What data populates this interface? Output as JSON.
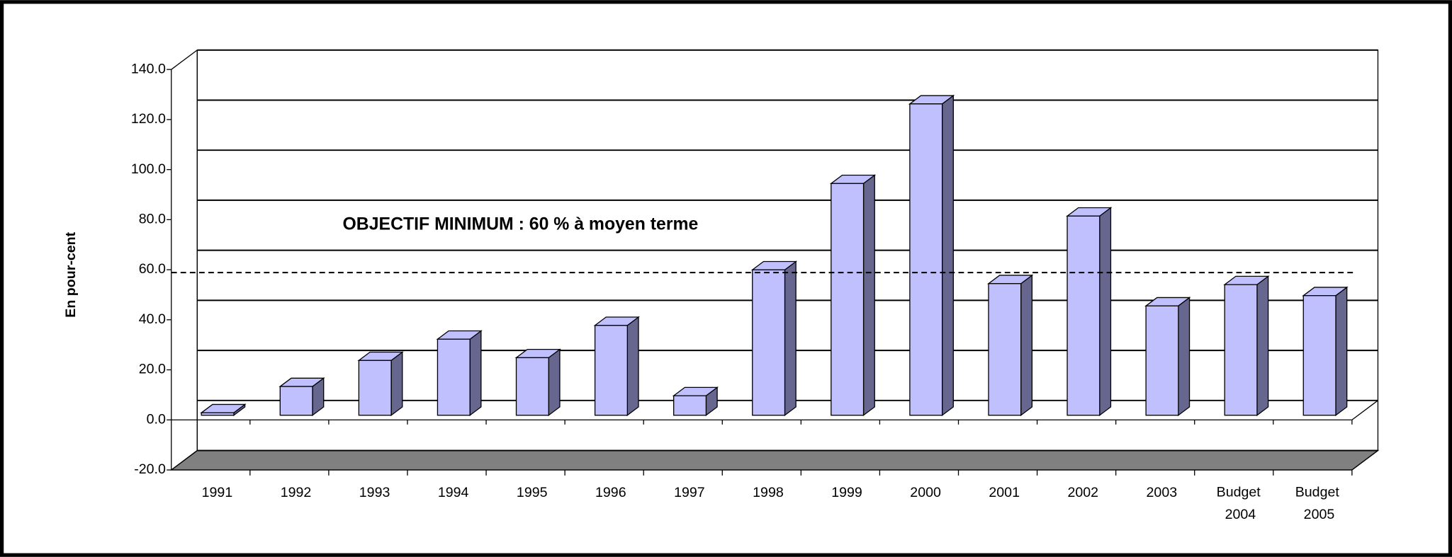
{
  "chart_data": {
    "type": "bar3d",
    "y_label": "En pour-cent",
    "annotation": "OBJECTIF  MINIMUM  :  60 % à moyen terme",
    "reference_line": 57,
    "categories": [
      "1991",
      "1992",
      "1993",
      "1994",
      "1995",
      "1996",
      "1997",
      "1998",
      "1999",
      "2000",
      "2001",
      "2002",
      "2003",
      "Budget 2004",
      "Budget 2005"
    ],
    "values": [
      1,
      11.5,
      21.9,
      30.4,
      23.0,
      35.9,
      7.8,
      58.1,
      92.6,
      124.4,
      52.6,
      79.6,
      43.7,
      52.2,
      47.8
    ],
    "color": "#c0c0ff",
    "side_color": "#66668f",
    "floor_color": "#808080",
    "ylim": [
      -20,
      140
    ],
    "yticks": [
      {
        "value": -20,
        "label": "-20.0"
      },
      {
        "value": 0,
        "label": "0.0"
      },
      {
        "value": 20,
        "label": "20.0"
      },
      {
        "value": 40,
        "label": "40.0"
      },
      {
        "value": 60,
        "label": "60.0"
      },
      {
        "value": 80,
        "label": "80.0"
      },
      {
        "value": 100,
        "label": "100.0"
      },
      {
        "value": 120,
        "label": "120.0"
      },
      {
        "value": 140,
        "label": "140.0"
      }
    ],
    "grid": true
  }
}
